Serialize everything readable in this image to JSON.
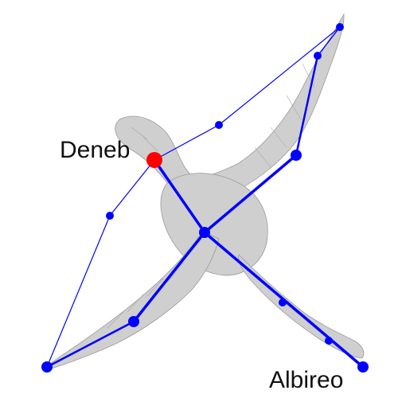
{
  "colors": {
    "background": "#ffffff",
    "line_color": "#0000ff",
    "highlight_color": "#ff0000",
    "illustration_color": "#c8c8c8"
  },
  "illustration": {
    "icon": "swan-engraving-icon"
  },
  "labels": {
    "deneb": "Deneb",
    "albireo": "Albireo"
  }
}
